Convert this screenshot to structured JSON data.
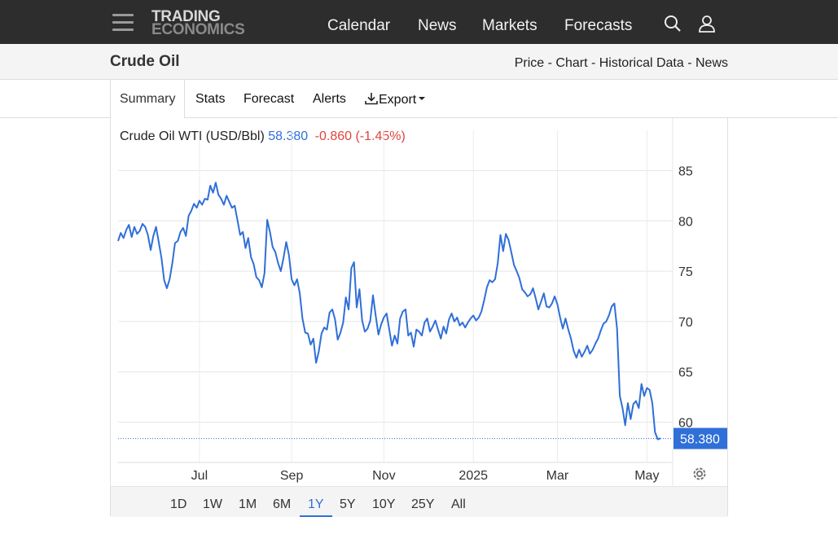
{
  "header": {
    "logo_line1": "TRADING",
    "logo_line2": "ECONOMICS",
    "nav": [
      "Calendar",
      "News",
      "Markets",
      "Forecasts"
    ]
  },
  "subheader": {
    "title": "Crude Oil",
    "links": [
      "Price",
      "Chart",
      "Historical Data",
      "News"
    ],
    "sep": " - "
  },
  "tabs": {
    "summary": "Summary",
    "stats": "Stats",
    "forecast": "Forecast",
    "alerts": "Alerts",
    "export": "Export"
  },
  "quote": {
    "name": "Crude Oil WTI (USD/Bbl)",
    "price": "58.380",
    "change": "-0.860 (-1.45%)"
  },
  "ranges": [
    "1D",
    "1W",
    "1M",
    "6M",
    "1Y",
    "5Y",
    "10Y",
    "25Y",
    "All"
  ],
  "active_range": "1Y",
  "colors": {
    "line": "#2f6fd8",
    "negative": "#e0443c",
    "accent": "#2f6fd8"
  },
  "chart_data": {
    "type": "line",
    "title": "",
    "ylim": [
      56,
      89
    ],
    "yticks": [
      60,
      65,
      70,
      75,
      80,
      85
    ],
    "xticks": [
      {
        "label": "Jul",
        "t": 0.15
      },
      {
        "label": "Sep",
        "t": 0.32
      },
      {
        "label": "Nov",
        "t": 0.49
      },
      {
        "label": "2025",
        "t": 0.655
      },
      {
        "label": "Mar",
        "t": 0.81
      },
      {
        "label": "May",
        "t": 0.975
      }
    ],
    "last_value": "58.380",
    "grid": true,
    "series": [
      {
        "values": [
          78.0,
          78.8,
          78.3,
          79.1,
          79.6,
          78.4,
          79.4,
          78.7,
          79.0,
          79.7,
          79.4,
          78.6,
          77.1,
          78.5,
          79.4,
          77.9,
          76.3,
          74.1,
          73.3,
          74.2,
          75.8,
          77.8,
          78.0,
          78.9,
          79.3,
          78.5,
          80.5,
          81.0,
          81.7,
          81.3,
          82.0,
          81.6,
          82.2,
          82.1,
          83.5,
          82.8,
          83.8,
          82.6,
          82.2,
          81.6,
          82.5,
          81.9,
          81.3,
          81.5,
          80.1,
          78.6,
          78.9,
          77.3,
          78.3,
          76.4,
          75.7,
          74.4,
          74.1,
          73.4,
          74.8,
          80.1,
          78.9,
          77.4,
          76.9,
          75.8,
          75.0,
          76.3,
          77.9,
          76.6,
          74.2,
          73.6,
          74.2,
          72.8,
          70.3,
          68.9,
          68.8,
          67.7,
          68.3,
          65.9,
          67.0,
          68.8,
          69.4,
          69.2,
          70.9,
          71.2,
          70.2,
          68.2,
          68.9,
          69.9,
          72.4,
          71.2,
          75.3,
          75.9,
          71.4,
          73.2,
          70.1,
          69.0,
          69.3,
          70.1,
          72.6,
          70.6,
          68.7,
          69.7,
          70.4,
          70.8,
          69.2,
          67.6,
          68.6,
          67.8,
          70.3,
          71.0,
          71.2,
          68.6,
          68.9,
          67.5,
          69.2,
          69.0,
          68.6,
          69.9,
          70.3,
          69.0,
          69.5,
          70.1,
          69.2,
          68.3,
          69.5,
          68.8,
          70.2,
          70.8,
          70.0,
          70.4,
          69.6,
          69.9,
          69.4,
          69.9,
          70.3,
          70.6,
          70.1,
          70.4,
          71.0,
          72.1,
          73.4,
          74.1,
          73.9,
          74.2,
          75.8,
          78.6,
          77.0,
          78.7,
          78.1,
          76.9,
          75.6,
          75.0,
          74.3,
          73.2,
          72.9,
          72.5,
          72.7,
          73.3,
          72.3,
          71.2,
          72.0,
          72.8,
          71.5,
          71.4,
          71.8,
          72.5,
          71.7,
          70.4,
          69.3,
          70.3,
          69.2,
          68.3,
          67.1,
          66.4,
          67.2,
          66.5,
          67.0,
          67.6,
          66.8,
          67.2,
          67.8,
          68.3,
          69.1,
          69.8,
          70.0,
          70.6,
          71.5,
          71.8,
          69.3,
          62.6,
          61.4,
          59.7,
          61.9,
          60.3,
          61.8,
          62.1,
          61.4,
          63.8,
          62.6,
          63.4,
          63.2,
          61.9,
          59.0,
          58.3,
          58.4
        ]
      }
    ]
  }
}
